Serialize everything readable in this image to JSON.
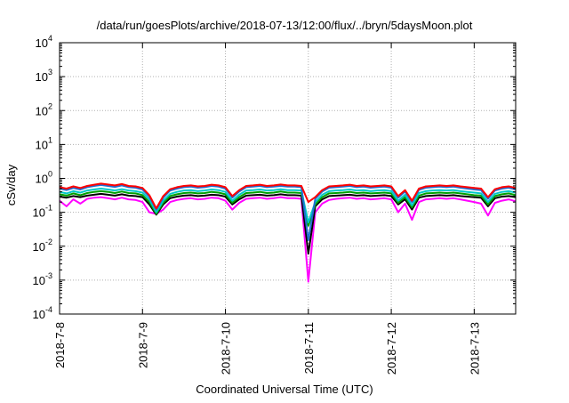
{
  "chart_data": {
    "type": "line",
    "title": "/data/run/goesPlots/archive/2018-07-13/12:00/flux/../bryn/5daysMoon.plot",
    "xlabel": "Coordinated Universal Time (UTC)",
    "ylabel": "cSv/day",
    "yscale": "log",
    "ylim": [
      0.0001,
      10000
    ],
    "xlim": [
      "2018-07-08T00:00",
      "2018-07-13T12:00"
    ],
    "grid": true,
    "legend": "none",
    "y_ticks": [
      {
        "value": 0.0001,
        "base": "10",
        "exp": "-4"
      },
      {
        "value": 0.001,
        "base": "10",
        "exp": "-3"
      },
      {
        "value": 0.01,
        "base": "10",
        "exp": "-2"
      },
      {
        "value": 0.1,
        "base": "10",
        "exp": "-1"
      },
      {
        "value": 1,
        "base": "10",
        "exp": "0"
      },
      {
        "value": 10,
        "base": "10",
        "exp": "1"
      },
      {
        "value": 100,
        "base": "10",
        "exp": "2"
      },
      {
        "value": 1000,
        "base": "10",
        "exp": "3"
      },
      {
        "value": 10000,
        "base": "10",
        "exp": "4"
      }
    ],
    "x_ticks": [
      {
        "value": "2018-07-08T00:00",
        "label": "2018-7-8"
      },
      {
        "value": "2018-07-09T00:00",
        "label": "2018-7-9"
      },
      {
        "value": "2018-07-10T00:00",
        "label": "2018-7-10"
      },
      {
        "value": "2018-07-11T00:00",
        "label": "2018-7-11"
      },
      {
        "value": "2018-07-12T00:00",
        "label": "2018-7-12"
      },
      {
        "value": "2018-07-13T00:00",
        "label": "2018-7-13"
      }
    ],
    "x": [
      "2018-07-08T00:00",
      "2018-07-08T02:00",
      "2018-07-08T04:00",
      "2018-07-08T06:00",
      "2018-07-08T08:00",
      "2018-07-08T10:00",
      "2018-07-08T12:00",
      "2018-07-08T14:00",
      "2018-07-08T16:00",
      "2018-07-08T18:00",
      "2018-07-08T20:00",
      "2018-07-08T22:00",
      "2018-07-09T00:00",
      "2018-07-09T02:00",
      "2018-07-09T04:00",
      "2018-07-09T06:00",
      "2018-07-09T08:00",
      "2018-07-09T10:00",
      "2018-07-09T12:00",
      "2018-07-09T14:00",
      "2018-07-09T16:00",
      "2018-07-09T18:00",
      "2018-07-09T20:00",
      "2018-07-09T22:00",
      "2018-07-10T00:00",
      "2018-07-10T02:00",
      "2018-07-10T04:00",
      "2018-07-10T06:00",
      "2018-07-10T08:00",
      "2018-07-10T10:00",
      "2018-07-10T12:00",
      "2018-07-10T14:00",
      "2018-07-10T16:00",
      "2018-07-10T18:00",
      "2018-07-10T20:00",
      "2018-07-10T22:00",
      "2018-07-11T00:00",
      "2018-07-11T02:00",
      "2018-07-11T04:00",
      "2018-07-11T06:00",
      "2018-07-11T08:00",
      "2018-07-11T10:00",
      "2018-07-11T12:00",
      "2018-07-11T14:00",
      "2018-07-11T16:00",
      "2018-07-11T18:00",
      "2018-07-11T20:00",
      "2018-07-11T22:00",
      "2018-07-12T00:00",
      "2018-07-12T02:00",
      "2018-07-12T04:00",
      "2018-07-12T06:00",
      "2018-07-12T08:00",
      "2018-07-12T10:00",
      "2018-07-12T12:00",
      "2018-07-12T14:00",
      "2018-07-12T16:00",
      "2018-07-12T18:00",
      "2018-07-12T20:00",
      "2018-07-12T22:00",
      "2018-07-13T00:00",
      "2018-07-13T02:00",
      "2018-07-13T04:00",
      "2018-07-13T06:00",
      "2018-07-13T08:00",
      "2018-07-13T10:00",
      "2018-07-13T12:00"
    ],
    "series": [
      {
        "color": "#ff0000",
        "values": [
          0.55,
          0.5,
          0.58,
          0.52,
          0.6,
          0.65,
          0.7,
          0.66,
          0.62,
          0.68,
          0.6,
          0.58,
          0.52,
          0.32,
          0.13,
          0.3,
          0.48,
          0.55,
          0.6,
          0.62,
          0.58,
          0.6,
          0.65,
          0.62,
          0.55,
          0.3,
          0.45,
          0.6,
          0.62,
          0.65,
          0.6,
          0.62,
          0.66,
          0.62,
          0.62,
          0.6,
          0.2,
          0.28,
          0.45,
          0.58,
          0.6,
          0.62,
          0.65,
          0.6,
          0.62,
          0.58,
          0.6,
          0.62,
          0.58,
          0.3,
          0.45,
          0.22,
          0.5,
          0.58,
          0.6,
          0.62,
          0.6,
          0.62,
          0.58,
          0.55,
          0.52,
          0.5,
          0.28,
          0.48,
          0.55,
          0.58,
          0.52
        ]
      },
      {
        "color": "#1f6fd1",
        "values": [
          0.5,
          0.45,
          0.52,
          0.47,
          0.55,
          0.6,
          0.64,
          0.6,
          0.56,
          0.62,
          0.55,
          0.53,
          0.47,
          0.29,
          0.12,
          0.27,
          0.44,
          0.5,
          0.55,
          0.57,
          0.53,
          0.55,
          0.6,
          0.57,
          0.5,
          0.27,
          0.41,
          0.55,
          0.57,
          0.6,
          0.55,
          0.57,
          0.6,
          0.57,
          0.57,
          0.55,
          0.015,
          0.25,
          0.41,
          0.53,
          0.55,
          0.57,
          0.6,
          0.55,
          0.57,
          0.53,
          0.55,
          0.57,
          0.53,
          0.27,
          0.41,
          0.2,
          0.46,
          0.53,
          0.55,
          0.57,
          0.55,
          0.57,
          0.53,
          0.5,
          0.47,
          0.45,
          0.25,
          0.44,
          0.5,
          0.53,
          0.47
        ]
      },
      {
        "color": "#00c8c8",
        "values": [
          0.4,
          0.36,
          0.42,
          0.38,
          0.44,
          0.47,
          0.5,
          0.47,
          0.44,
          0.48,
          0.44,
          0.42,
          0.38,
          0.24,
          0.1,
          0.22,
          0.35,
          0.4,
          0.44,
          0.45,
          0.42,
          0.44,
          0.47,
          0.45,
          0.4,
          0.22,
          0.33,
          0.44,
          0.45,
          0.47,
          0.44,
          0.45,
          0.48,
          0.45,
          0.45,
          0.44,
          0.05,
          0.2,
          0.33,
          0.42,
          0.44,
          0.45,
          0.47,
          0.44,
          0.45,
          0.42,
          0.44,
          0.45,
          0.42,
          0.22,
          0.33,
          0.16,
          0.37,
          0.42,
          0.44,
          0.45,
          0.44,
          0.45,
          0.42,
          0.4,
          0.38,
          0.36,
          0.2,
          0.35,
          0.4,
          0.42,
          0.38
        ]
      },
      {
        "color": "#00a000",
        "values": [
          0.34,
          0.31,
          0.36,
          0.32,
          0.37,
          0.4,
          0.42,
          0.4,
          0.37,
          0.41,
          0.37,
          0.36,
          0.32,
          0.2,
          0.09,
          0.19,
          0.3,
          0.34,
          0.37,
          0.38,
          0.36,
          0.37,
          0.4,
          0.38,
          0.34,
          0.19,
          0.28,
          0.37,
          0.38,
          0.4,
          0.37,
          0.38,
          0.41,
          0.38,
          0.38,
          0.37,
          0.04,
          0.17,
          0.28,
          0.36,
          0.37,
          0.38,
          0.4,
          0.37,
          0.38,
          0.36,
          0.37,
          0.38,
          0.36,
          0.19,
          0.28,
          0.14,
          0.31,
          0.36,
          0.37,
          0.38,
          0.37,
          0.38,
          0.36,
          0.34,
          0.32,
          0.31,
          0.17,
          0.3,
          0.34,
          0.36,
          0.32
        ]
      },
      {
        "color": "#000000",
        "values": [
          0.29,
          0.27,
          0.3,
          0.28,
          0.31,
          0.33,
          0.35,
          0.33,
          0.31,
          0.34,
          0.31,
          0.3,
          0.28,
          0.17,
          0.085,
          0.17,
          0.26,
          0.29,
          0.31,
          0.32,
          0.3,
          0.31,
          0.33,
          0.32,
          0.29,
          0.17,
          0.24,
          0.31,
          0.32,
          0.33,
          0.31,
          0.32,
          0.34,
          0.32,
          0.32,
          0.31,
          0.006,
          0.15,
          0.24,
          0.3,
          0.31,
          0.32,
          0.33,
          0.31,
          0.32,
          0.3,
          0.31,
          0.32,
          0.3,
          0.17,
          0.24,
          0.12,
          0.27,
          0.3,
          0.31,
          0.32,
          0.31,
          0.32,
          0.3,
          0.29,
          0.28,
          0.27,
          0.15,
          0.26,
          0.29,
          0.3,
          0.28
        ]
      },
      {
        "color": "#ff00ff",
        "values": [
          0.22,
          0.15,
          0.24,
          0.18,
          0.25,
          0.27,
          0.28,
          0.26,
          0.24,
          0.27,
          0.24,
          0.23,
          0.2,
          0.1,
          0.09,
          0.12,
          0.2,
          0.23,
          0.25,
          0.26,
          0.24,
          0.25,
          0.27,
          0.26,
          0.22,
          0.12,
          0.19,
          0.25,
          0.26,
          0.27,
          0.25,
          0.26,
          0.28,
          0.26,
          0.26,
          0.25,
          0.0009,
          0.1,
          0.18,
          0.23,
          0.25,
          0.26,
          0.27,
          0.25,
          0.26,
          0.24,
          0.25,
          0.26,
          0.24,
          0.1,
          0.18,
          0.06,
          0.2,
          0.24,
          0.25,
          0.26,
          0.25,
          0.26,
          0.24,
          0.22,
          0.2,
          0.18,
          0.08,
          0.19,
          0.22,
          0.24,
          0.21
        ]
      }
    ]
  }
}
